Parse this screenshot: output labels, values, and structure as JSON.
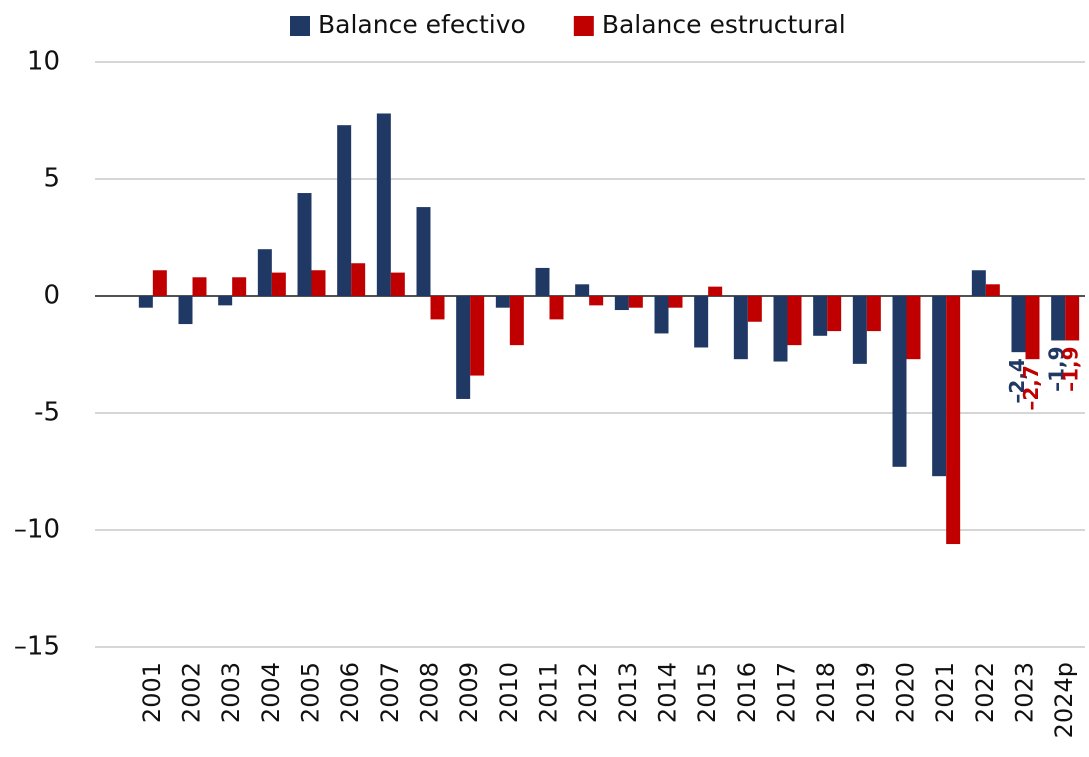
{
  "chart_data": {
    "type": "bar",
    "categories": [
      "2001",
      "2002",
      "2003",
      "2004",
      "2005",
      "2006",
      "2007",
      "2008",
      "2009",
      "2010",
      "2011",
      "2012",
      "2013",
      "2014",
      "2015",
      "2016",
      "2017",
      "2018",
      "2019",
      "2020",
      "2021",
      "2022",
      "2023",
      "2024p"
    ],
    "series": [
      {
        "name": "Balance efectivo",
        "color": "#1f3864",
        "values": [
          -0.5,
          -1.2,
          -0.4,
          2.0,
          4.4,
          7.3,
          7.8,
          3.8,
          -4.4,
          -0.5,
          1.2,
          0.5,
          -0.6,
          -1.6,
          -2.2,
          -2.7,
          -2.8,
          -1.7,
          -2.9,
          -7.3,
          -7.7,
          1.1,
          -2.4,
          -1.9
        ],
        "value_labels": [
          null,
          null,
          null,
          null,
          null,
          null,
          null,
          null,
          null,
          null,
          null,
          null,
          null,
          null,
          null,
          null,
          null,
          null,
          null,
          null,
          null,
          null,
          "–2,4",
          "–1,9"
        ]
      },
      {
        "name": "Balance estructural",
        "color": "#c00000",
        "values": [
          1.1,
          0.8,
          0.8,
          1.0,
          1.1,
          1.4,
          1.0,
          -1.0,
          -3.4,
          -2.1,
          -1.0,
          -0.4,
          -0.5,
          -0.5,
          0.4,
          -1.1,
          -2.1,
          -1.5,
          -1.5,
          -2.7,
          -10.6,
          0.5,
          -2.7,
          -1.9
        ],
        "value_labels": [
          null,
          null,
          null,
          null,
          null,
          null,
          null,
          null,
          null,
          null,
          null,
          null,
          null,
          null,
          null,
          null,
          null,
          null,
          null,
          null,
          null,
          null,
          "–2,7",
          "–1,9"
        ]
      }
    ],
    "ylim": [
      -15,
      10
    ],
    "yticks": [
      {
        "value": -15,
        "label": "–15"
      },
      {
        "value": -10,
        "label": "–10"
      },
      -5,
      0,
      5,
      10
    ],
    "grid": true,
    "legend": "top"
  }
}
